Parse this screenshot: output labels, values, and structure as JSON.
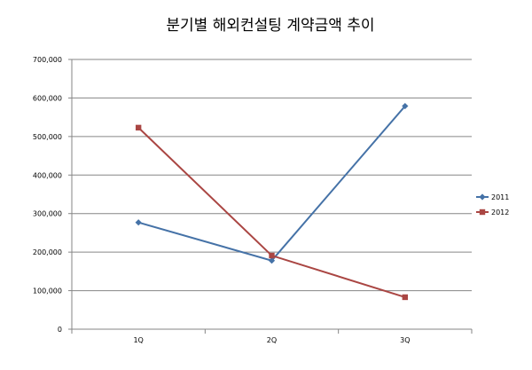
{
  "chart_data": {
    "type": "line",
    "title": "분기별 해외컨설팅 계약금액 추이",
    "categories": [
      "1Q",
      "2Q",
      "3Q"
    ],
    "y_ticks": [
      "0",
      "100,000",
      "200,000",
      "300,000",
      "400,000",
      "500,000",
      "600,000",
      "700,000"
    ],
    "ylim": [
      0,
      700000
    ],
    "grid": true,
    "legend_position": "right",
    "series": [
      {
        "name": "2011",
        "values": [
          277000,
          178000,
          579000
        ],
        "color": "#4572A7",
        "marker": "diamond"
      },
      {
        "name": "2012",
        "values": [
          523000,
          191000,
          83000
        ],
        "color": "#AA4643",
        "marker": "square"
      }
    ]
  }
}
